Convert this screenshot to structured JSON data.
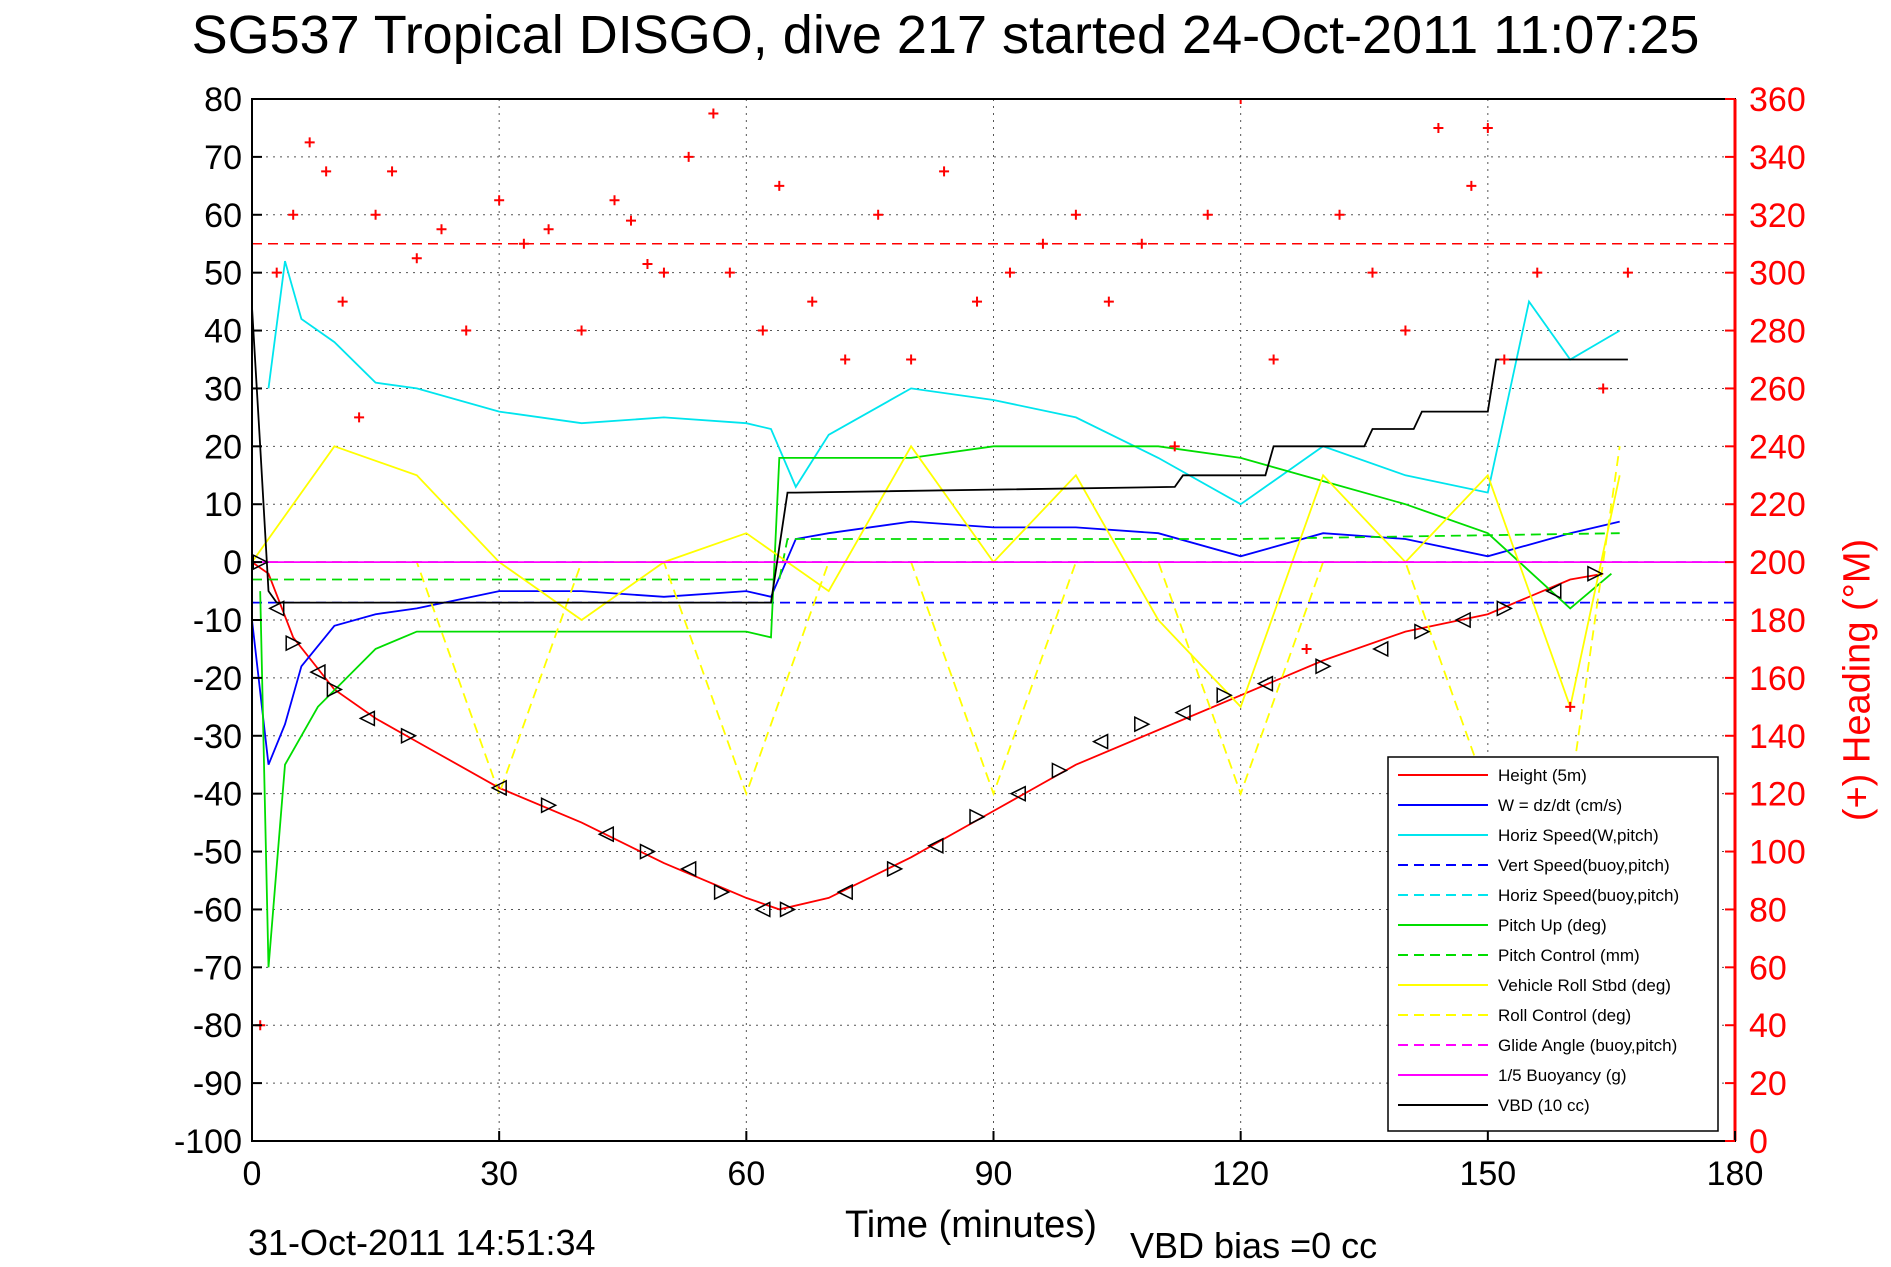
{
  "title": "SG537 Tropical DISGO, dive 217 started 24-Oct-2011 11:07:25",
  "footer": {
    "timestamp": "31-Oct-2011 14:51:34",
    "vbd_bias": "VBD bias =0 cc"
  },
  "chart_data": {
    "type": "line",
    "xlabel": "Time (minutes)",
    "ylabel_left": "",
    "ylabel_right": "(+) Heading (°M)",
    "xlim": [
      0,
      180
    ],
    "ylim_left": [
      -100,
      80
    ],
    "ylim_right": [
      0,
      360
    ],
    "x_ticks": [
      0,
      30,
      60,
      90,
      120,
      150,
      180
    ],
    "y_ticks_left": [
      80,
      70,
      60,
      50,
      40,
      30,
      20,
      10,
      0,
      -10,
      -20,
      -30,
      -40,
      -50,
      -60,
      -70,
      -80,
      -90,
      -100
    ],
    "y_ticks_right": [
      360,
      340,
      320,
      300,
      280,
      260,
      240,
      220,
      200,
      180,
      160,
      140,
      120,
      100,
      80,
      60,
      40,
      20,
      0
    ],
    "grid": true,
    "legend_position": "bottom-right",
    "reference_lines": [
      {
        "axis": "right",
        "value": 310,
        "color": "#ff0000",
        "style": "dashed"
      }
    ],
    "series": [
      {
        "name": "Height (5m)",
        "color": "#ff0000",
        "style": "solid",
        "axis": "left",
        "x": [
          0,
          2,
          5,
          10,
          15,
          20,
          30,
          40,
          50,
          60,
          64,
          70,
          80,
          90,
          100,
          110,
          120,
          130,
          140,
          150,
          160,
          164
        ],
        "y": [
          0,
          -2,
          -13,
          -22,
          -27,
          -31,
          -39,
          -45,
          -52,
          -58,
          -60,
          -58,
          -51,
          -43,
          -35,
          -29,
          -23,
          -17,
          -12,
          -9,
          -3,
          -2
        ]
      },
      {
        "name": "W = dz/dt (cm/s)",
        "color": "#0000ff",
        "style": "solid",
        "axis": "left",
        "x": [
          0,
          2,
          4,
          6,
          10,
          15,
          20,
          30,
          40,
          50,
          60,
          63,
          66,
          70,
          80,
          90,
          100,
          110,
          120,
          130,
          140,
          150,
          160,
          166
        ],
        "y": [
          -10,
          -35,
          -28,
          -18,
          -11,
          -9,
          -8,
          -5,
          -5,
          -6,
          -5,
          -6,
          4,
          5,
          7,
          6,
          6,
          5,
          1,
          5,
          4,
          1,
          5,
          7
        ]
      },
      {
        "name": "Horiz Speed(W,pitch)",
        "color": "#00e5ee",
        "style": "solid",
        "axis": "left",
        "x": [
          2,
          4,
          6,
          10,
          15,
          20,
          30,
          40,
          50,
          60,
          63,
          66,
          70,
          80,
          90,
          100,
          110,
          120,
          130,
          140,
          150,
          155,
          160,
          166
        ],
        "y": [
          30,
          52,
          42,
          38,
          31,
          30,
          26,
          24,
          25,
          24,
          23,
          13,
          22,
          30,
          28,
          25,
          18,
          10,
          20,
          15,
          12,
          45,
          35,
          40
        ]
      },
      {
        "name": "Vert Speed(buoy,pitch)",
        "color": "#0000ff",
        "style": "dashed",
        "axis": "left",
        "x": [
          0,
          180
        ],
        "y": [
          -7,
          -7
        ]
      },
      {
        "name": "Horiz Speed(buoy,pitch)",
        "color": "#00e5ee",
        "style": "dashed",
        "axis": "left",
        "x": [
          0,
          180
        ],
        "y": [
          0,
          0
        ]
      },
      {
        "name": "Pitch Up (deg)",
        "color": "#00dd00",
        "style": "solid",
        "axis": "left",
        "x": [
          1,
          2,
          4,
          8,
          15,
          20,
          30,
          40,
          50,
          60,
          63,
          64,
          70,
          80,
          90,
          100,
          110,
          120,
          130,
          140,
          150,
          160,
          165
        ],
        "y": [
          -5,
          -70,
          -35,
          -25,
          -15,
          -12,
          -12,
          -12,
          -12,
          -12,
          -13,
          18,
          18,
          18,
          20,
          20,
          20,
          18,
          14,
          10,
          5,
          -8,
          -2
        ]
      },
      {
        "name": "Pitch Control (mm)",
        "color": "#00dd00",
        "style": "dashed",
        "axis": "left",
        "x": [
          0,
          5,
          64,
          65,
          120,
          166
        ],
        "y": [
          -3,
          -3,
          -3,
          4,
          4,
          5
        ]
      },
      {
        "name": "Vehicle Roll Stbd (deg)",
        "color": "#ffff00",
        "style": "solid",
        "axis": "left",
        "x": [
          0,
          10,
          20,
          30,
          40,
          50,
          60,
          70,
          80,
          90,
          100,
          110,
          120,
          130,
          140,
          150,
          160,
          166
        ],
        "y": [
          0,
          20,
          15,
          0,
          -10,
          0,
          5,
          -5,
          20,
          0,
          15,
          -10,
          -25,
          15,
          0,
          15,
          -25,
          15
        ]
      },
      {
        "name": "Roll Control (deg)",
        "color": "#ffff00",
        "style": "dashed",
        "axis": "left",
        "x": [
          0,
          10,
          20,
          30,
          40,
          50,
          60,
          70,
          80,
          90,
          100,
          110,
          120,
          130,
          140,
          150,
          160,
          166
        ],
        "y": [
          0,
          0,
          0,
          -40,
          0,
          0,
          -40,
          0,
          0,
          -40,
          0,
          0,
          -40,
          0,
          0,
          -40,
          -40,
          20
        ]
      },
      {
        "name": "Glide Angle (buoy,pitch)",
        "color": "#ff00ff",
        "style": "dashed",
        "axis": "left",
        "x": [
          0,
          180
        ],
        "y": [
          0,
          0
        ]
      },
      {
        "name": "1/5 Buoyancy (g)",
        "color": "#ff00ff",
        "style": "solid",
        "axis": "left",
        "x": [
          0,
          180
        ],
        "y": [
          0,
          0
        ]
      },
      {
        "name": "VBD (10 cc)",
        "color": "#000000",
        "style": "solid",
        "axis": "left",
        "x": [
          0,
          1,
          2,
          3,
          63,
          65,
          66,
          112,
          113,
          123,
          124,
          135,
          136,
          141,
          142,
          150,
          151,
          163,
          164,
          167
        ],
        "y": [
          44,
          20,
          -5,
          -7,
          -7,
          12,
          12,
          13,
          15,
          15,
          20,
          20,
          23,
          23,
          26,
          26,
          35,
          35,
          35,
          35
        ]
      },
      {
        "name": "",
        "color": "#ff0000",
        "style": "markers-plus",
        "axis": "right",
        "x": [
          1,
          3,
          5,
          7,
          9,
          11,
          13,
          15,
          17,
          20,
          23,
          26,
          30,
          33,
          36,
          40,
          44,
          46,
          48,
          50,
          53,
          56,
          58,
          62,
          64,
          68,
          72,
          76,
          80,
          84,
          88,
          92,
          96,
          100,
          104,
          108,
          112,
          116,
          120,
          124,
          128,
          132,
          136,
          140,
          144,
          148,
          150,
          152,
          156,
          160,
          164,
          167
        ],
        "y": [
          40,
          300,
          320,
          345,
          335,
          290,
          250,
          320,
          335,
          305,
          315,
          280,
          325,
          310,
          315,
          280,
          325,
          318,
          303,
          300,
          340,
          355,
          300,
          280,
          330,
          290,
          270,
          320,
          270,
          335,
          290,
          300,
          310,
          320,
          290,
          310,
          240,
          320,
          360,
          270,
          170,
          320,
          300,
          280,
          350,
          330,
          350,
          270,
          300,
          150,
          260,
          300
        ]
      }
    ],
    "markers": {
      "name": "",
      "color": "#000000",
      "style": "triangles",
      "axis": "left",
      "x": [
        1,
        3,
        5,
        8,
        10,
        14,
        19,
        30,
        36,
        43,
        48,
        53,
        57,
        62,
        65,
        72,
        78,
        83,
        88,
        93,
        98,
        103,
        108,
        113,
        118,
        123,
        130,
        137,
        142,
        147,
        152,
        158,
        163
      ],
      "y": [
        0,
        -8,
        -14,
        -19,
        -22,
        -27,
        -30,
        -39,
        -42,
        -47,
        -50,
        -53,
        -57,
        -60,
        -60,
        -57,
        -53,
        -49,
        -44,
        -40,
        -36,
        -31,
        -28,
        -26,
        -23,
        -21,
        -18,
        -15,
        -12,
        -10,
        -8,
        -5,
        -2
      ]
    }
  }
}
